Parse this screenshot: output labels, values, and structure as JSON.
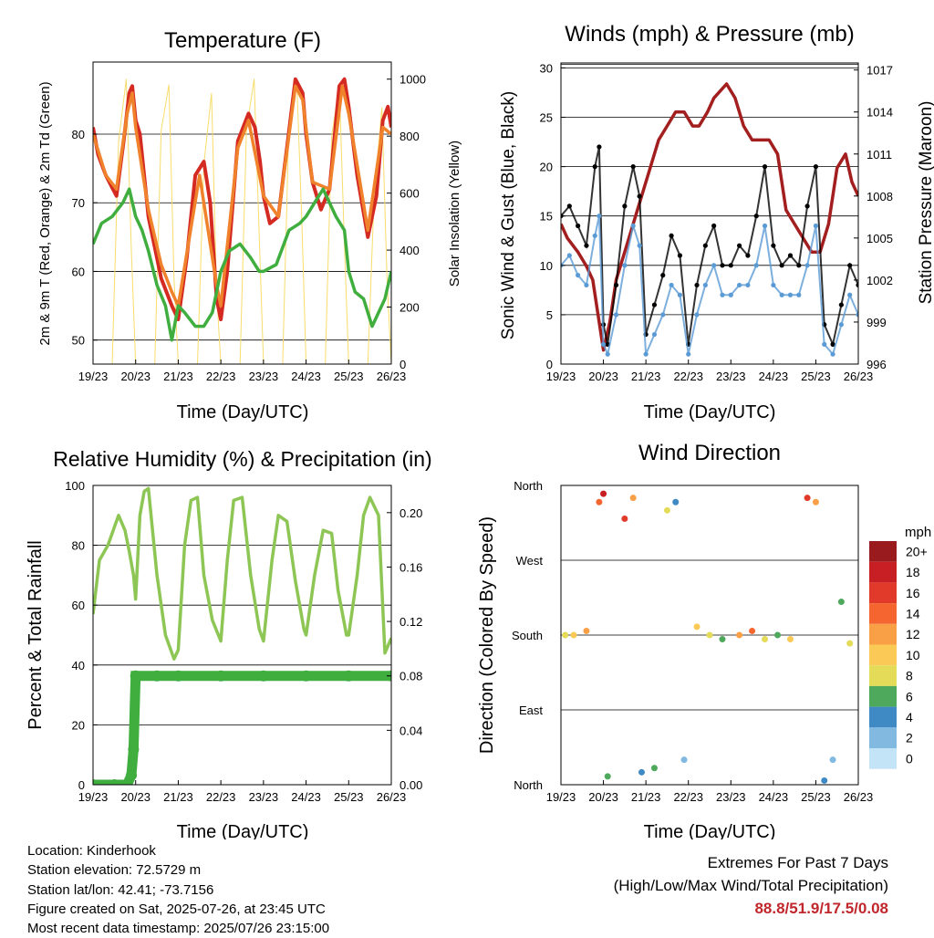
{
  "chart_data": [
    {
      "type": "line",
      "title": "Temperature (F)",
      "xlabel": "Time (Day/UTC)",
      "ylabel": "2m & 9m T (Red, Orange) & 2m Td (Green)",
      "y2label": "Solar Insolation (Yellow)",
      "x_ticks": [
        "19/23",
        "20/23",
        "21/23",
        "22/23",
        "23/23",
        "24/23",
        "25/23",
        "26/23"
      ],
      "ylim": [
        46.5,
        90.5
      ],
      "y_ticks": [
        50,
        60,
        70,
        80
      ],
      "y2lim": [
        0,
        1060
      ],
      "y2_ticks": [
        0,
        200,
        400,
        600,
        800,
        1000
      ],
      "grid": "horizontal",
      "series": [
        {
          "color": "#d42a22",
          "x": [
            0,
            0.12,
            0.3,
            0.55,
            0.72,
            0.85,
            0.92,
            1.0,
            1.1,
            1.3,
            1.6,
            1.85,
            2.0,
            2.2,
            2.4,
            2.6,
            2.75,
            2.9,
            3.0,
            3.15,
            3.4,
            3.65,
            3.8,
            3.92,
            4.0,
            4.15,
            4.35,
            4.55,
            4.75,
            4.92,
            5.0,
            5.15,
            5.35,
            5.55,
            5.78,
            5.9,
            6.0,
            6.2,
            6.45,
            6.65,
            6.8,
            6.92,
            7.0
          ],
          "y": [
            81,
            77,
            74,
            71,
            79,
            86,
            87,
            82,
            80,
            68,
            59,
            55,
            53,
            62,
            74,
            76,
            70,
            56,
            53,
            60,
            79,
            83,
            81,
            76,
            71,
            67,
            68,
            78,
            88,
            86,
            80,
            73,
            69,
            72,
            87,
            88,
            84,
            74,
            65,
            71,
            82,
            84,
            81
          ]
        },
        {
          "color": "#f0822c",
          "x": [
            0,
            0.3,
            0.55,
            0.8,
            0.92,
            1.0,
            1.3,
            1.6,
            1.85,
            2.0,
            2.5,
            2.9,
            3.0,
            3.4,
            3.65,
            4.0,
            4.35,
            4.75,
            4.92,
            5.15,
            5.55,
            5.85,
            6.0,
            6.45,
            6.8,
            7.0
          ],
          "y": [
            80,
            74,
            72,
            83,
            86,
            81,
            69,
            61,
            57,
            55,
            74,
            58,
            55,
            78,
            82,
            71,
            68,
            87,
            85,
            73,
            72,
            87,
            83,
            66,
            81,
            80
          ]
        },
        {
          "color": "#3fae3f",
          "x": [
            0,
            0.2,
            0.45,
            0.7,
            0.85,
            1.0,
            1.15,
            1.3,
            1.5,
            1.7,
            1.85,
            2.0,
            2.15,
            2.4,
            2.6,
            2.8,
            3.0,
            3.2,
            3.45,
            3.7,
            3.9,
            4.0,
            4.3,
            4.6,
            4.85,
            5.0,
            5.2,
            5.4,
            5.7,
            5.9,
            6.0,
            6.15,
            6.35,
            6.55,
            6.7,
            6.85,
            7.0
          ],
          "y": [
            64,
            67,
            68,
            70,
            72,
            68,
            66,
            63,
            58,
            55,
            50,
            55,
            54,
            52,
            52,
            54,
            60,
            63,
            64,
            62,
            60,
            60,
            61,
            66,
            67,
            68,
            70,
            72,
            68,
            66,
            60,
            57,
            56,
            52,
            54,
            56,
            60
          ]
        },
        {
          "color": "#f7dc6b",
          "axis": "y2",
          "x": [
            0,
            0.45,
            0.6,
            0.78,
            0.9,
            1.0,
            1.45,
            1.6,
            1.78,
            1.9,
            2.0,
            2.45,
            2.6,
            2.78,
            2.9,
            3.0,
            3.45,
            3.6,
            3.78,
            3.9,
            4.0,
            4.45,
            4.6,
            4.78,
            4.9,
            5.0,
            5.45,
            5.6,
            5.78,
            5.9,
            6.0,
            6.45,
            6.6,
            6.78,
            6.9,
            7.0
          ],
          "y": [
            0,
            0,
            780,
            1000,
            400,
            0,
            0,
            820,
            980,
            300,
            0,
            0,
            700,
            950,
            250,
            0,
            0,
            820,
            1000,
            450,
            0,
            0,
            860,
            1000,
            500,
            0,
            0,
            800,
            980,
            420,
            0,
            0,
            600,
            900,
            300,
            0
          ]
        }
      ]
    },
    {
      "type": "scatter",
      "title": "Winds (mph) & Pressure (mb)",
      "xlabel": "Time (Day/UTC)",
      "ylabel": "Sonic Wind & Gust (Blue, Black)",
      "y2label": "Station Pressure (Maroon)",
      "x_ticks": [
        "19/23",
        "20/23",
        "21/23",
        "22/23",
        "23/23",
        "24/23",
        "25/23",
        "26/23"
      ],
      "ylim": [
        0,
        30.5
      ],
      "y_ticks": [
        0,
        5,
        10,
        15,
        20,
        25,
        30
      ],
      "y2lim": [
        996,
        1017.5
      ],
      "y2_ticks": [
        996,
        999,
        1002,
        1005,
        1008,
        1011,
        1014,
        1017
      ],
      "grid": "horizontal",
      "series": [
        {
          "color": "#000000",
          "x": [
            0.0,
            0.2,
            0.4,
            0.6,
            0.8,
            0.9,
            1.0,
            1.1,
            1.3,
            1.5,
            1.7,
            1.85,
            2.0,
            2.2,
            2.4,
            2.6,
            2.8,
            3.0,
            3.2,
            3.4,
            3.6,
            3.8,
            4.0,
            4.2,
            4.4,
            4.6,
            4.8,
            5.0,
            5.2,
            5.4,
            5.6,
            5.8,
            6.0,
            6.2,
            6.4,
            6.6,
            6.8,
            7.0
          ],
          "y": [
            15,
            16,
            14,
            12,
            20,
            22,
            4,
            2,
            8,
            16,
            20,
            17,
            3,
            6,
            9,
            13,
            11,
            2,
            8,
            12,
            14,
            10,
            10,
            12,
            11,
            15,
            20,
            12,
            10,
            11,
            10,
            16,
            20,
            4,
            2,
            6,
            10,
            8
          ]
        },
        {
          "color": "#5b9bd5",
          "x": [
            0.0,
            0.2,
            0.4,
            0.6,
            0.8,
            0.9,
            1.0,
            1.1,
            1.3,
            1.5,
            1.7,
            1.85,
            2.0,
            2.2,
            2.4,
            2.6,
            2.8,
            3.0,
            3.2,
            3.4,
            3.6,
            3.8,
            4.0,
            4.2,
            4.4,
            4.6,
            4.8,
            5.0,
            5.2,
            5.4,
            5.6,
            5.8,
            6.0,
            6.2,
            6.4,
            6.6,
            6.8,
            7.0
          ],
          "y": [
            10,
            11,
            9,
            8,
            13,
            15,
            2,
            1,
            5,
            10,
            14,
            12,
            1,
            3,
            5,
            8,
            7,
            1,
            5,
            8,
            10,
            7,
            7,
            8,
            8,
            10,
            14,
            8,
            7,
            7,
            7,
            10,
            14,
            2,
            1,
            4,
            7,
            5
          ]
        },
        {
          "color": "#a31f1f",
          "axis": "y2",
          "x": [
            0,
            0.15,
            0.4,
            0.6,
            0.75,
            0.9,
            1.0,
            1.15,
            1.3,
            1.5,
            1.7,
            1.9,
            2.1,
            2.3,
            2.5,
            2.7,
            2.9,
            3.1,
            3.25,
            3.45,
            3.6,
            3.9,
            4.1,
            4.3,
            4.5,
            4.7,
            4.9,
            5.1,
            5.3,
            5.5,
            5.7,
            5.9,
            6.1,
            6.3,
            6.5,
            6.7,
            6.85,
            7.0
          ],
          "y": [
            1006,
            1005,
            1004,
            1003,
            1002,
            999,
            997,
            999,
            1002,
            1004,
            1006,
            1008,
            1010,
            1012,
            1013,
            1014,
            1014,
            1013,
            1013,
            1014,
            1015,
            1016,
            1015,
            1013,
            1012,
            1012,
            1012,
            1011,
            1007,
            1006,
            1005,
            1004,
            1004,
            1006,
            1010,
            1011,
            1009,
            1008
          ]
        }
      ]
    },
    {
      "type": "scatter",
      "title": "Relative Humidity (%) & Precipitation (in)",
      "xlabel": "Time (Day/UTC)",
      "ylabel": "Percent & Total Rainfall",
      "x_ticks": [
        "19/23",
        "20/23",
        "21/23",
        "22/23",
        "23/23",
        "24/23",
        "25/23",
        "26/23"
      ],
      "ylim": [
        0,
        100
      ],
      "y_ticks": [
        0,
        20,
        40,
        60,
        80,
        100
      ],
      "y2lim": [
        0,
        0.22
      ],
      "y2_ticks": [
        "0.00",
        "0.04",
        "0.08",
        "0.12",
        "0.16",
        "0.20"
      ],
      "grid": "horizontal",
      "series": [
        {
          "color": "#8dc655",
          "x": [
            0,
            0.15,
            0.35,
            0.6,
            0.75,
            0.85,
            0.95,
            1.0,
            1.1,
            1.2,
            1.3,
            1.5,
            1.7,
            1.9,
            2.0,
            2.15,
            2.3,
            2.45,
            2.6,
            2.8,
            3.0,
            3.15,
            3.3,
            3.5,
            3.7,
            3.9,
            4.0,
            4.2,
            4.35,
            4.55,
            4.75,
            4.95,
            5.0,
            5.2,
            5.4,
            5.6,
            5.75,
            5.95,
            6.0,
            6.2,
            6.35,
            6.5,
            6.7,
            6.85,
            7.0
          ],
          "y": [
            57,
            75,
            80,
            90,
            85,
            78,
            70,
            62,
            90,
            98,
            99,
            70,
            50,
            42,
            45,
            80,
            95,
            96,
            70,
            55,
            48,
            75,
            95,
            96,
            70,
            52,
            48,
            75,
            90,
            88,
            68,
            52,
            50,
            70,
            85,
            84,
            65,
            50,
            50,
            70,
            90,
            96,
            90,
            44,
            49
          ]
        },
        {
          "color": "#3fae3f",
          "axis": "y2",
          "x": [
            0,
            0.5,
            0.8,
            0.9,
            0.95,
            1.0,
            1.5,
            2.0,
            3.0,
            4.0,
            5.0,
            6.0,
            7.0
          ],
          "y": [
            0,
            0,
            0,
            0.007,
            0.026,
            0.08,
            0.08,
            0.08,
            0.08,
            0.08,
            0.08,
            0.08,
            0.08
          ]
        }
      ]
    },
    {
      "type": "scatter",
      "title": "Wind Direction",
      "xlabel": "Time (Day/UTC)",
      "ylabel": "Direction (Colored By Speed)",
      "x_ticks": [
        "19/23",
        "20/23",
        "21/23",
        "22/23",
        "23/23",
        "24/23",
        "25/23",
        "26/23"
      ],
      "y_ticks": [
        "North",
        "East",
        "South",
        "West",
        "North"
      ],
      "ylim": [
        0,
        360
      ],
      "grid": "horizontal",
      "colorbar_title": "mph",
      "colorbar_labels": [
        "20+",
        "18",
        "16",
        "14",
        "12",
        "10",
        "8",
        "6",
        "4",
        "2",
        "0"
      ],
      "colorbar_colors": [
        "#991b1e",
        "#c81f25",
        "#e23a2a",
        "#f46530",
        "#f9a046",
        "#fbca56",
        "#e4dc59",
        "#4fa95c",
        "#3f8ac4",
        "#81b9e0",
        "#c3e3f6"
      ],
      "x": [
        0.1,
        0.3,
        0.6,
        0.9,
        1.0,
        1.1,
        1.5,
        1.7,
        1.9,
        2.2,
        2.5,
        2.7,
        2.9,
        3.2,
        3.5,
        3.8,
        4.2,
        4.5,
        4.8,
        5.1,
        5.4,
        5.8,
        6.0,
        6.2,
        6.4,
        6.6,
        6.8
      ],
      "direction": [
        180,
        180,
        185,
        340,
        350,
        10,
        320,
        345,
        15,
        20,
        330,
        340,
        30,
        190,
        180,
        175,
        180,
        185,
        175,
        180,
        175,
        345,
        340,
        5,
        30,
        220,
        170
      ],
      "speed": [
        8,
        10,
        12,
        14,
        18,
        6,
        16,
        12,
        4,
        6,
        8,
        4,
        2,
        10,
        8,
        6,
        12,
        14,
        8,
        6,
        10,
        16,
        12,
        4,
        2,
        6,
        8
      ]
    }
  ],
  "info": {
    "location": "Location: Kinderhook",
    "elevation": "Station elevation: 72.5729 m",
    "latlon": "Station lat/lon: 42.41; -73.7156",
    "created": "Figure created on Sat, 2025-07-26, at 23:45 UTC",
    "timestamp": "Most recent data timestamp: 2025/07/26 23:15:00"
  },
  "extremes": {
    "heading": "Extremes For Past 7 Days",
    "subheading": "(High/Low/Max Wind/Total Precipitation)",
    "values": "88.8/51.9/17.5/0.08"
  }
}
